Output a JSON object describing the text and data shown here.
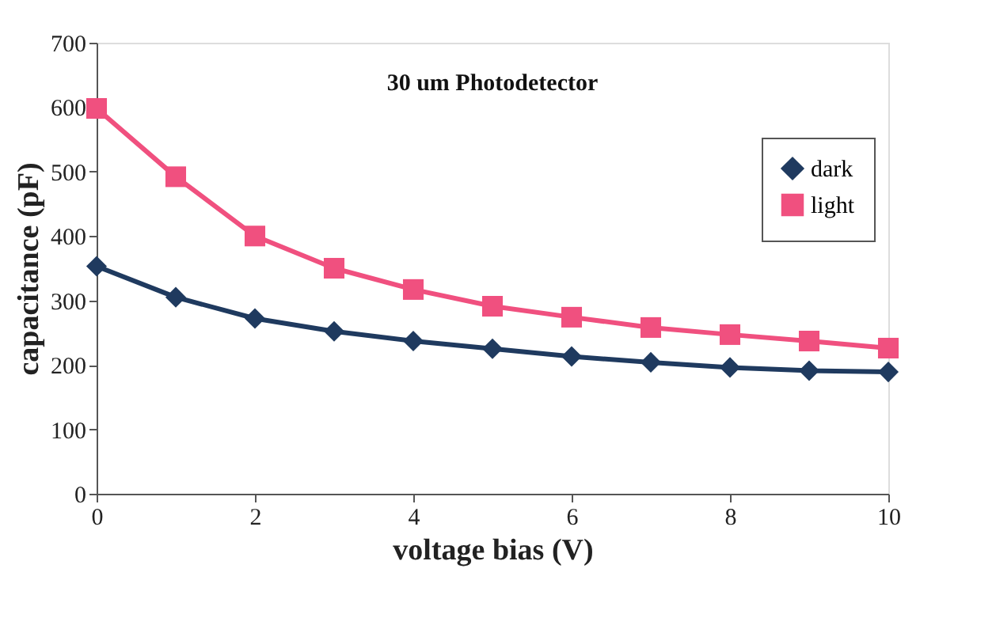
{
  "chart_data": {
    "type": "line",
    "title": "30 um Photodetector",
    "xlabel": "voltage bias  (V)",
    "ylabel": "capacitance  (pF)",
    "x": [
      0,
      1,
      2,
      3,
      4,
      5,
      6,
      7,
      8,
      9,
      10
    ],
    "series": [
      {
        "name": "dark",
        "color": "#1f3a5f",
        "marker": "diamond",
        "values": [
          353,
          305,
          272,
          252,
          237,
          225,
          213,
          204,
          196,
          191,
          189
        ]
      },
      {
        "name": "light",
        "color": "#f0507f",
        "marker": "square",
        "values": [
          598,
          492,
          400,
          350,
          317,
          291,
          274,
          258,
          247,
          237,
          226
        ]
      }
    ],
    "xlim": [
      0,
      10
    ],
    "xticks": [
      0,
      2,
      4,
      6,
      8,
      10
    ],
    "ylim": [
      0,
      700
    ],
    "yticks": [
      0,
      100,
      200,
      300,
      400,
      500,
      600,
      700
    ],
    "grid": false,
    "legend": "right",
    "line_style": "solid"
  }
}
